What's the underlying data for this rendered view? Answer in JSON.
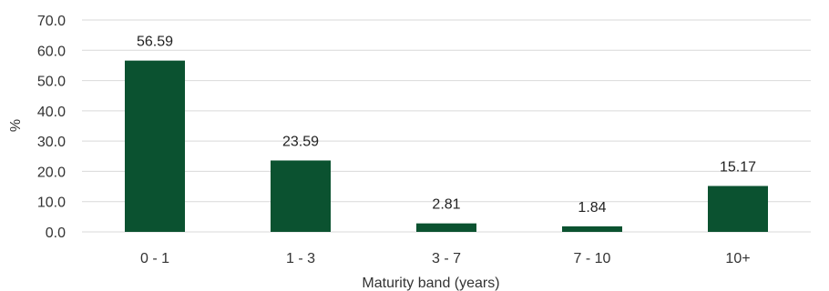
{
  "chart_data": {
    "type": "bar",
    "categories": [
      "0 - 1",
      "1 - 3",
      "3 - 7",
      "7 - 10",
      "10+"
    ],
    "values": [
      56.59,
      23.59,
      2.81,
      1.84,
      15.17
    ],
    "data_labels": [
      "56.59",
      "23.59",
      "2.81",
      "1.84",
      "15.17"
    ],
    "xlabel": "Maturity band (years)",
    "ylabel": "%",
    "ylim": [
      0,
      70
    ],
    "yticks": [
      "0.0",
      "10.0",
      "20.0",
      "30.0",
      "40.0",
      "50.0",
      "60.0",
      "70.0"
    ],
    "grid": true,
    "legend": "none",
    "bar_color": "#0b5230"
  }
}
